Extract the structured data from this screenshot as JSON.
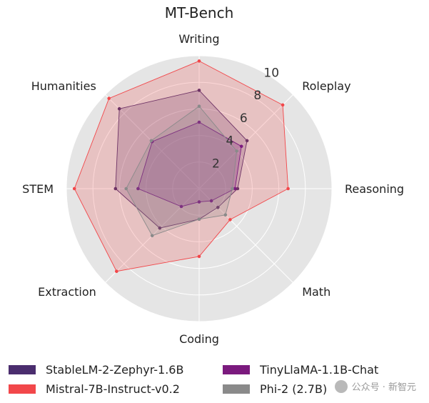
{
  "chart_data": {
    "type": "radar",
    "title": "MT-Bench",
    "axes": [
      "Writing",
      "Roleplay",
      "Reasoning",
      "Math",
      "Coding",
      "Extraction",
      "STEM",
      "Humanities"
    ],
    "rlim": [
      0,
      10
    ],
    "radial_ticks": [
      2,
      4,
      6,
      8,
      10
    ],
    "grid": true,
    "legend_position": "bottom",
    "series": [
      {
        "name": "StableLM-2-Zephyr-1.6B",
        "color": "#4a2d6e",
        "values": [
          7.4,
          5.1,
          2.9,
          2.0,
          2.3,
          4.2,
          6.3,
          8.5
        ]
      },
      {
        "name": "Mistral-7B-Instruct-v0.2",
        "color": "#f2474a",
        "values": [
          9.6,
          8.9,
          6.7,
          3.3,
          5.1,
          8.8,
          9.4,
          9.6
        ]
      },
      {
        "name": "TinyLlaMA-1.1B-Chat",
        "color": "#7b1a7e",
        "values": [
          5.0,
          4.5,
          2.7,
          1.3,
          1.0,
          1.9,
          4.6,
          5.0
        ]
      },
      {
        "name": "Phi-2 (2.7B)",
        "color": "#8a8a8a",
        "values": [
          6.2,
          4.0,
          2.5,
          2.8,
          2.3,
          5.0,
          5.5,
          5.1
        ]
      }
    ]
  },
  "watermark": {
    "text": "公众号 · 新智元"
  }
}
